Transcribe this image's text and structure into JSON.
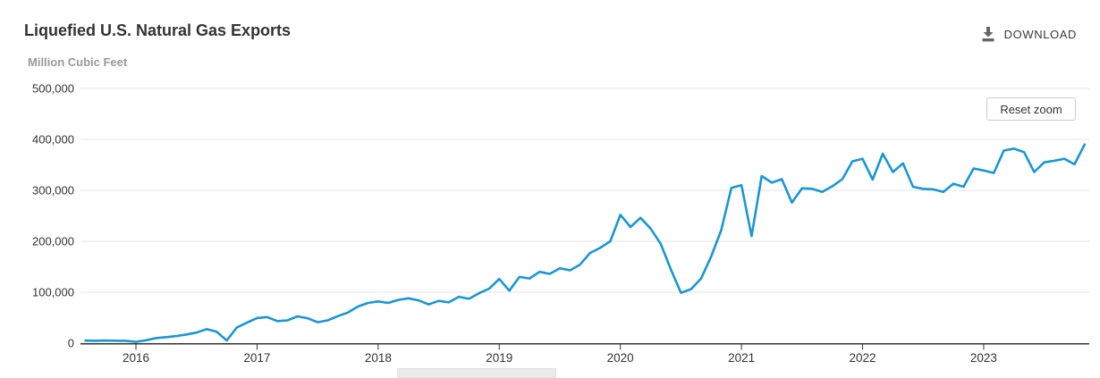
{
  "header": {
    "title": "Liquefied U.S. Natural Gas Exports",
    "download_label": "DOWNLOAD",
    "download_icon": "download-icon"
  },
  "controls": {
    "reset_zoom_label": "Reset zoom"
  },
  "chart_data": {
    "type": "line",
    "title": "Liquefied U.S. Natural Gas Exports",
    "ylabel": "Million Cubic Feet",
    "xlabel": "",
    "ylim": [
      0,
      500000
    ],
    "yticks": [
      0,
      100000,
      200000,
      300000,
      400000,
      500000
    ],
    "ytick_labels": [
      "0",
      "100,000",
      "200,000",
      "300,000",
      "400,000",
      "500,000"
    ],
    "xtick_labels": [
      "2016",
      "2017",
      "2018",
      "2019",
      "2020",
      "2021",
      "2022",
      "2023"
    ],
    "grid": "horizontal-only",
    "legend": "none",
    "line_color": "#1a96d5",
    "axis_color": "#333333",
    "gridline_color": "#e6e6e6",
    "x_start_month": "2015-08",
    "x_end_month": "2023-11",
    "series": [
      {
        "name": "Liquefied U.S. Natural Gas Exports",
        "unit": "Million Cubic Feet",
        "monthly_values": [
          4900,
          4700,
          5100,
          4800,
          4500,
          2700,
          5600,
          10000,
          11800,
          13800,
          17100,
          20700,
          27600,
          22200,
          5300,
          30700,
          40200,
          49300,
          51300,
          43400,
          44500,
          52600,
          48900,
          41000,
          44800,
          53000,
          60000,
          72000,
          79000,
          82000,
          79000,
          85000,
          88000,
          84000,
          76000,
          83000,
          80000,
          91000,
          87000,
          98000,
          107000,
          126000,
          103000,
          130000,
          127000,
          140000,
          136000,
          147000,
          143000,
          154000,
          177000,
          187000,
          200000,
          252000,
          228000,
          246000,
          225000,
          195000,
          145000,
          99000,
          106000,
          127000,
          170000,
          222000,
          305000,
          310000,
          210000,
          328000,
          315000,
          322000,
          276000,
          304000,
          303000,
          297000,
          308000,
          322000,
          357000,
          362000,
          321000,
          372000,
          336000,
          353000,
          307000,
          303000,
          302000,
          297000,
          313000,
          307000,
          343000,
          339000,
          334000,
          378000,
          382000,
          375000,
          336000,
          355000,
          358000,
          362000,
          351000,
          390000
        ]
      }
    ]
  }
}
